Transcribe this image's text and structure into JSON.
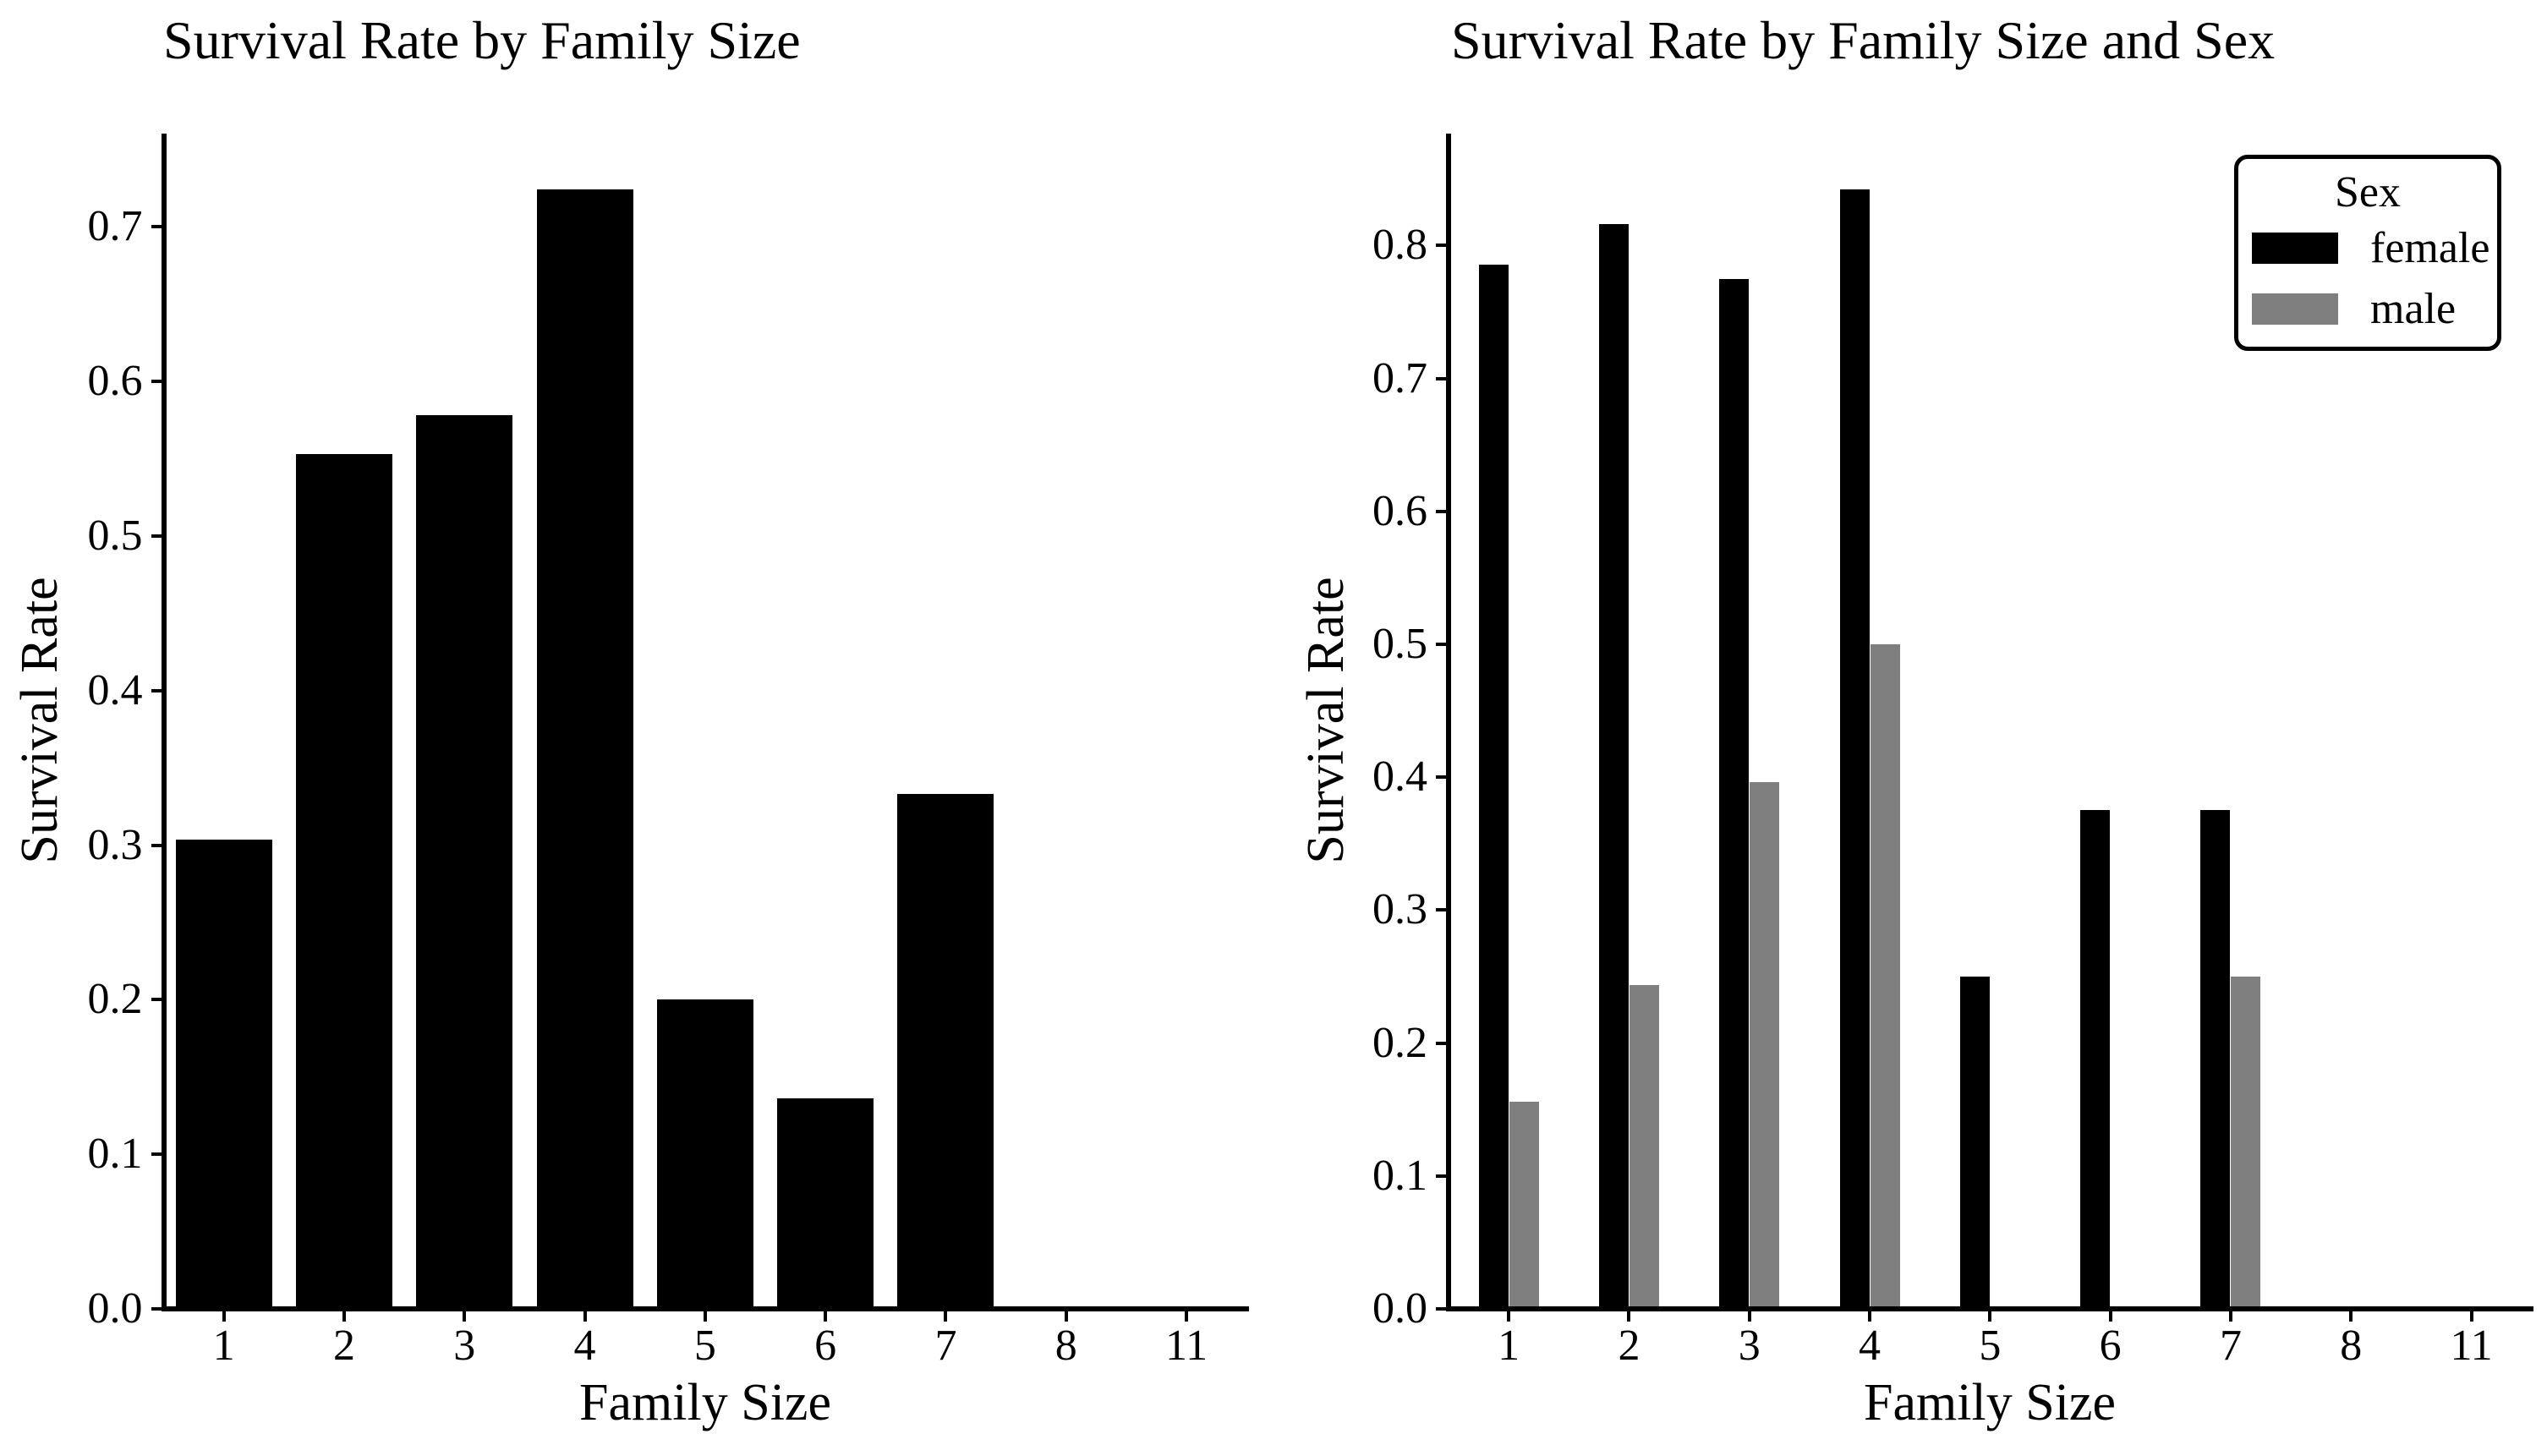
{
  "figure": {
    "background": "#ffffff",
    "text_color": "#000000"
  },
  "chart_data": [
    {
      "type": "bar",
      "title": "Survival Rate by Family Size",
      "xlabel": "Family Size",
      "ylabel": "Survival Rate",
      "categories": [
        "1",
        "2",
        "3",
        "4",
        "5",
        "6",
        "7",
        "8",
        "11"
      ],
      "values": [
        0.3035,
        0.5528,
        0.5784,
        0.7241,
        0.2,
        0.1364,
        0.3333,
        0.0,
        0.0
      ],
      "bar_color": "#000000",
      "ylim": [
        0,
        0.7603
      ],
      "yticks": [
        0.0,
        0.1,
        0.2,
        0.3,
        0.4,
        0.5,
        0.6,
        0.7
      ],
      "ytick_labels": [
        "0.0",
        "0.1",
        "0.2",
        "0.3",
        "0.4",
        "0.5",
        "0.6",
        "0.7"
      ],
      "grid": false,
      "legend": null
    },
    {
      "type": "bar",
      "title": "Survival Rate by Family Size and Sex",
      "xlabel": "Family Size",
      "ylabel": "Survival Rate",
      "categories": [
        "1",
        "2",
        "3",
        "4",
        "5",
        "6",
        "7",
        "8",
        "11"
      ],
      "series": [
        {
          "name": "female",
          "color": "#000000",
          "values": [
            0.7857,
            0.8161,
            0.775,
            0.8421,
            0.25,
            0.375,
            0.375,
            0.0,
            0.0
          ]
        },
        {
          "name": "male",
          "color": "#7f7f7f",
          "values": [
            0.1557,
            0.2439,
            0.3966,
            0.5,
            0.0,
            0.0,
            0.25,
            0.0,
            0.0
          ]
        }
      ],
      "ylim": [
        0,
        0.8842
      ],
      "yticks": [
        0.0,
        0.1,
        0.2,
        0.3,
        0.4,
        0.5,
        0.6,
        0.7,
        0.8
      ],
      "ytick_labels": [
        "0.0",
        "0.1",
        "0.2",
        "0.3",
        "0.4",
        "0.5",
        "0.6",
        "0.7",
        "0.8"
      ],
      "grid": false,
      "legend": {
        "title": "Sex",
        "entries": [
          "female",
          "male"
        ],
        "position": "upper right"
      }
    }
  ]
}
